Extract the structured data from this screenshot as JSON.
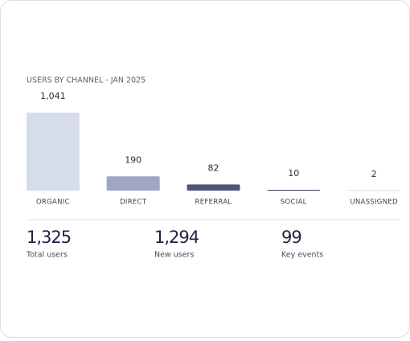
{
  "chart_data": {
    "type": "bar",
    "title": "USERS BY CHANNEL - JAN 2025",
    "categories": [
      "ORGANIC",
      "DIRECT",
      "REFERRAL",
      "SOCIAL",
      "UNASSIGNED"
    ],
    "values": [
      1041,
      190,
      82,
      10,
      2
    ],
    "value_labels": [
      "1,041",
      "190",
      "82",
      "10",
      "2"
    ],
    "colors": [
      "#d6dce8",
      "#9ea6c1",
      "#4b5679",
      "#1f2540",
      "#1f2540"
    ]
  },
  "kpis": [
    {
      "value": "1,325",
      "label": "Total users"
    },
    {
      "value": "1,294",
      "label": "New users"
    },
    {
      "value": "99",
      "label": "Key events"
    }
  ]
}
